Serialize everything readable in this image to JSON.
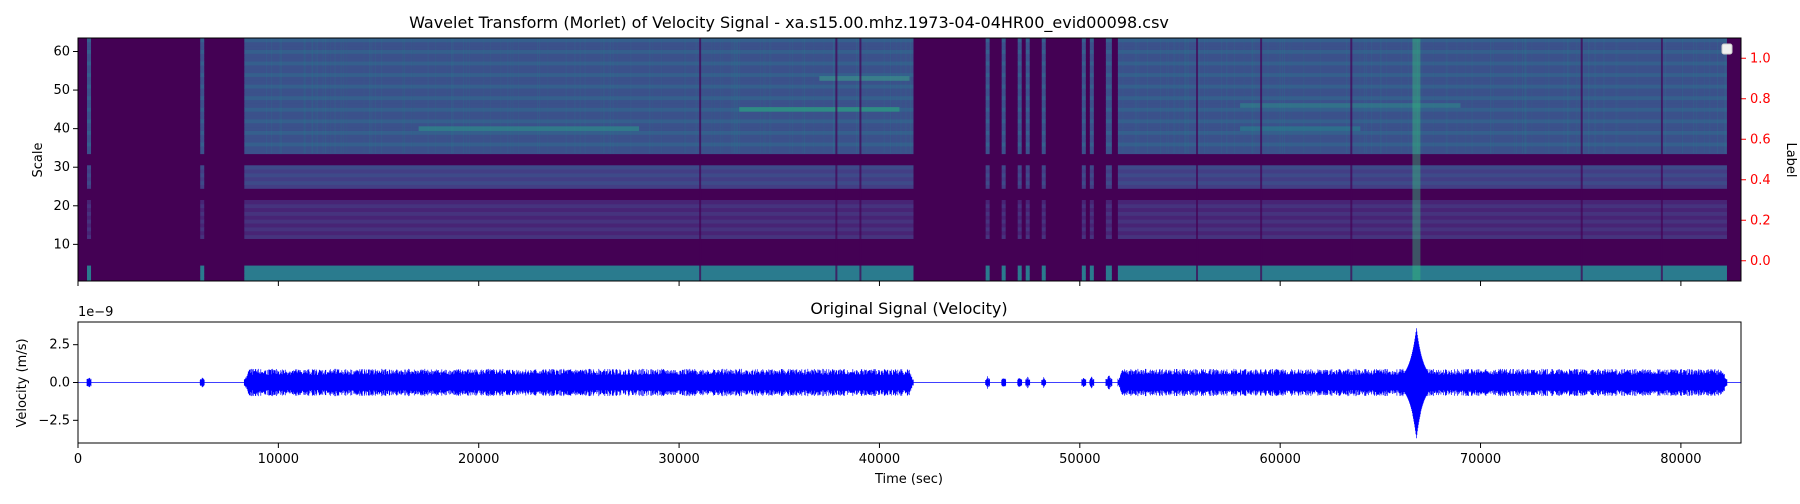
{
  "chart_data": [
    {
      "type": "heatmap",
      "title": "Wavelet Transform (Morlet) of Velocity Signal - xa.s15.00.mhz.1973-04-04HR00_evid00098.csv",
      "xlabel": "",
      "ylabel": "Scale",
      "y2label": "Label",
      "colormap": "viridis",
      "xlim": [
        0,
        83000
      ],
      "ylim": [
        0.5,
        63.5
      ],
      "y2lim": [
        -0.1,
        1.1
      ],
      "yticks": [
        10,
        20,
        30,
        40,
        50,
        60
      ],
      "y2ticks": [
        0.0,
        0.2,
        0.4,
        0.6,
        0.8,
        1.0
      ],
      "y2tick_labels": [
        "0.0",
        "0.2",
        "0.4",
        "0.6",
        "0.8",
        "1.0"
      ],
      "y2_color": "#ff0000",
      "legend": "top-right",
      "active_segments": [
        [
          450,
          650
        ],
        [
          6100,
          6300
        ],
        [
          8300,
          41700
        ],
        [
          45300,
          45500
        ],
        [
          46100,
          46300
        ],
        [
          46900,
          47100
        ],
        [
          47300,
          47500
        ],
        [
          48100,
          48300
        ],
        [
          50100,
          50300
        ],
        [
          50500,
          50700
        ],
        [
          51300,
          51600
        ],
        [
          51900,
          82300
        ]
      ],
      "event_time": 66800,
      "gap_scales": [
        [
          31,
          33
        ],
        [
          22,
          24
        ],
        [
          5,
          11
        ]
      ]
    },
    {
      "type": "line",
      "title": "Original Signal (Velocity)",
      "xlabel": "Time (sec)",
      "ylabel": "Velocity (m/s)",
      "scale_label": "1e−9",
      "xlim": [
        0,
        83000
      ],
      "ylim": [
        -4.0,
        4.0
      ],
      "xticks": [
        0,
        10000,
        20000,
        30000,
        40000,
        50000,
        60000,
        70000,
        80000
      ],
      "yticks": [
        -2.5,
        0.0,
        2.5
      ],
      "ytick_labels": [
        "−2.5",
        "0.0",
        "2.5"
      ],
      "color": "#0000ff",
      "noise_amplitude": 0.9,
      "peak_time": 66800,
      "peak_value": 3.6,
      "trough_value": -3.7,
      "active_segments": [
        [
          450,
          650
        ],
        [
          6100,
          6300
        ],
        [
          8300,
          41700
        ],
        [
          45300,
          45500
        ],
        [
          46100,
          46300
        ],
        [
          46900,
          47100
        ],
        [
          47300,
          47500
        ],
        [
          48100,
          48300
        ],
        [
          50100,
          50300
        ],
        [
          50500,
          50700
        ],
        [
          51300,
          51600
        ],
        [
          51900,
          82300
        ]
      ]
    }
  ]
}
